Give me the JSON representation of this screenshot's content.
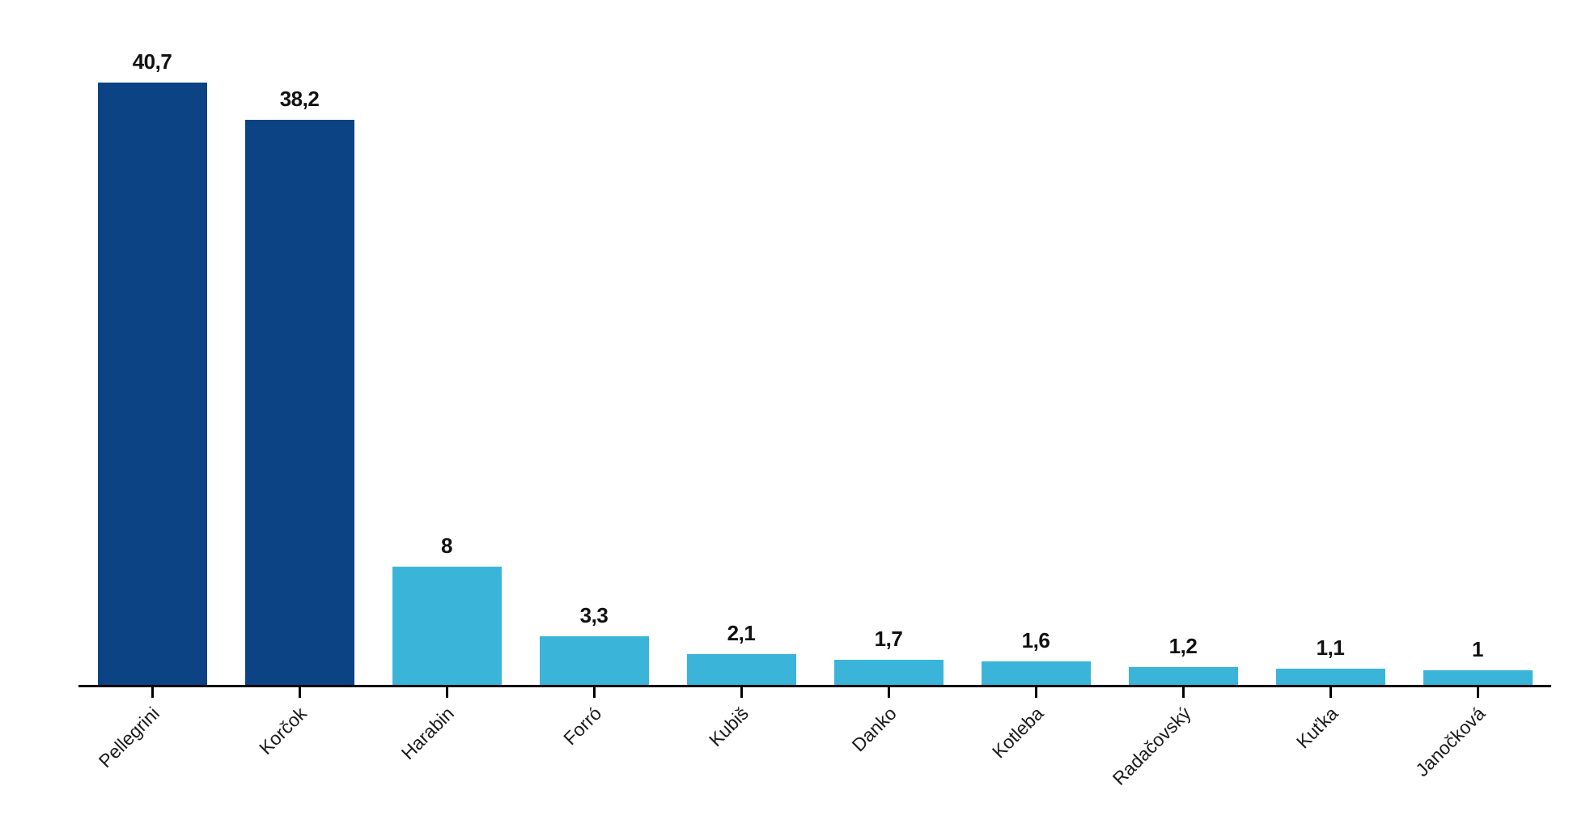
{
  "chart_data": {
    "type": "bar",
    "categories": [
      "Pellegrini",
      "Korčok",
      "Harabin",
      "Forró",
      "Kubiš",
      "Danko",
      "Kotleba",
      "Radačovský",
      "Kuťka",
      "Janočková"
    ],
    "values": [
      40.7,
      38.2,
      8,
      3.3,
      2.1,
      1.7,
      1.6,
      1.2,
      1.1,
      1
    ],
    "value_labels": [
      "40,7",
      "38,2",
      "8",
      "3,3",
      "2,1",
      "1,7",
      "1,6",
      "1,2",
      "1,1",
      "1"
    ],
    "bar_colors": [
      "#0c4384",
      "#0c4384",
      "#3ab5d9",
      "#3ab5d9",
      "#3ab5d9",
      "#3ab5d9",
      "#3ab5d9",
      "#3ab5d9",
      "#3ab5d9",
      "#3ab5d9"
    ],
    "title": "",
    "xlabel": "",
    "ylabel": "",
    "ylim": [
      0,
      46
    ],
    "grid": false,
    "legend_position": "none",
    "axis_color": "#000000",
    "label_color": "#1a1a1a",
    "x_label_rotation_deg": -45,
    "decimal_separator": ","
  }
}
